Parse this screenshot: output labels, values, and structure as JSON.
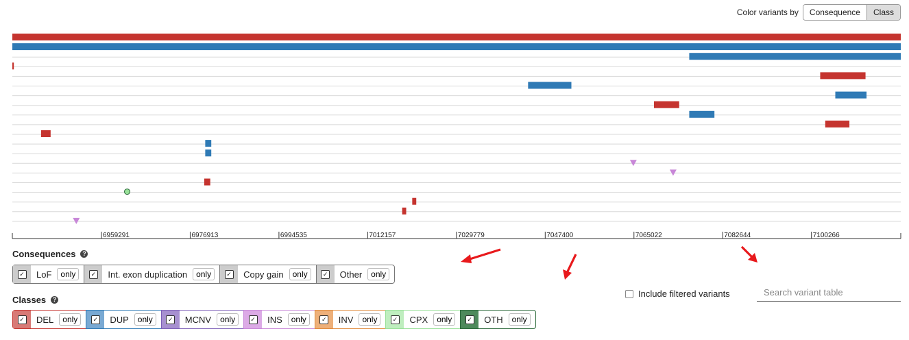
{
  "toolbar": {
    "color_label": "Color variants by",
    "options": [
      {
        "label": "Consequence",
        "active": false
      },
      {
        "label": "Class",
        "active": true
      }
    ]
  },
  "colors": {
    "del": "#c5342f",
    "dup": "#2f7ab5",
    "ins": "#c887d8",
    "cpx": "#98e098",
    "gene_line": "#d8d8d8",
    "annotation": "#e8191c"
  },
  "track": {
    "ticks": [
      "6959291",
      "6976913",
      "6994535",
      "7012157",
      "7029779",
      "7047400",
      "7065022",
      "7082644",
      "7100266"
    ],
    "variants": [
      {
        "row": 0,
        "cls": "del",
        "start": 6941600,
        "end": 7118000
      },
      {
        "row": 1,
        "cls": "dup",
        "start": 6941600,
        "end": 7118000
      },
      {
        "row": 2,
        "cls": "dup",
        "start": 7076000,
        "end": 7118000
      },
      {
        "row": 3,
        "cls": "del",
        "start": 6941600,
        "end": 6941900
      },
      {
        "row": 4,
        "cls": "del",
        "start": 7102000,
        "end": 7111000
      },
      {
        "row": 5,
        "cls": "dup",
        "start": 7044000,
        "end": 7052600
      },
      {
        "row": 6,
        "cls": "dup",
        "start": 7105000,
        "end": 7111200
      },
      {
        "row": 7,
        "cls": "del",
        "start": 7069000,
        "end": 7074000
      },
      {
        "row": 8,
        "cls": "dup",
        "start": 7076000,
        "end": 7081000
      },
      {
        "row": 9,
        "cls": "del",
        "start": 7103000,
        "end": 7107800
      },
      {
        "row": 10,
        "cls": "del",
        "start": 6947300,
        "end": 6949200
      },
      {
        "row": 11,
        "cls": "dup",
        "start": 6979900,
        "end": 6981100
      },
      {
        "row": 12,
        "cls": "dup",
        "start": 6979900,
        "end": 6981100
      },
      {
        "row": 13,
        "cls": "ins",
        "start": 7064900,
        "end": 7064900
      },
      {
        "row": 14,
        "cls": "ins",
        "start": 7072800,
        "end": 7072800
      },
      {
        "row": 15,
        "cls": "del",
        "start": 6979700,
        "end": 6980900
      },
      {
        "row": 16,
        "cls": "cpx",
        "start": 6964400,
        "end": 6964400
      },
      {
        "row": 17,
        "cls": "del",
        "start": 7021000,
        "end": 7021800
      },
      {
        "row": 18,
        "cls": "del",
        "start": 7019000,
        "end": 7019800
      },
      {
        "row": 19,
        "cls": "ins",
        "start": 6954300,
        "end": 6954300
      }
    ]
  },
  "consequences": {
    "title": "Consequences",
    "items": [
      {
        "label": "LoF",
        "only": "only",
        "color": "#cccccc"
      },
      {
        "label": "Int. exon duplication",
        "only": "only",
        "color": "#cccccc"
      },
      {
        "label": "Copy gain",
        "only": "only",
        "color": "#cccccc"
      },
      {
        "label": "Other",
        "only": "only",
        "color": "#cccccc"
      }
    ]
  },
  "classes": {
    "title": "Classes",
    "items": [
      {
        "label": "DEL",
        "only": "only",
        "color": "#d87a76",
        "border": "#c5342f"
      },
      {
        "label": "DUP",
        "only": "only",
        "color": "#79a9d3",
        "border": "#2f7ab5"
      },
      {
        "label": "MCNV",
        "only": "only",
        "color": "#a790d0",
        "border": "#7d5fb8"
      },
      {
        "label": "INS",
        "only": "only",
        "color": "#dcaae6",
        "border": "#c887d8"
      },
      {
        "label": "INV",
        "only": "only",
        "color": "#eeb07a",
        "border": "#e08a3c"
      },
      {
        "label": "CPX",
        "only": "only",
        "color": "#bfeebf",
        "border": "#98e098"
      },
      {
        "label": "OTH",
        "only": "only",
        "color": "#4e8a5c",
        "border": "#2d6a3c"
      }
    ]
  },
  "filters": {
    "include_filtered": "Include filtered variants",
    "search_placeholder": "Search variant table"
  }
}
